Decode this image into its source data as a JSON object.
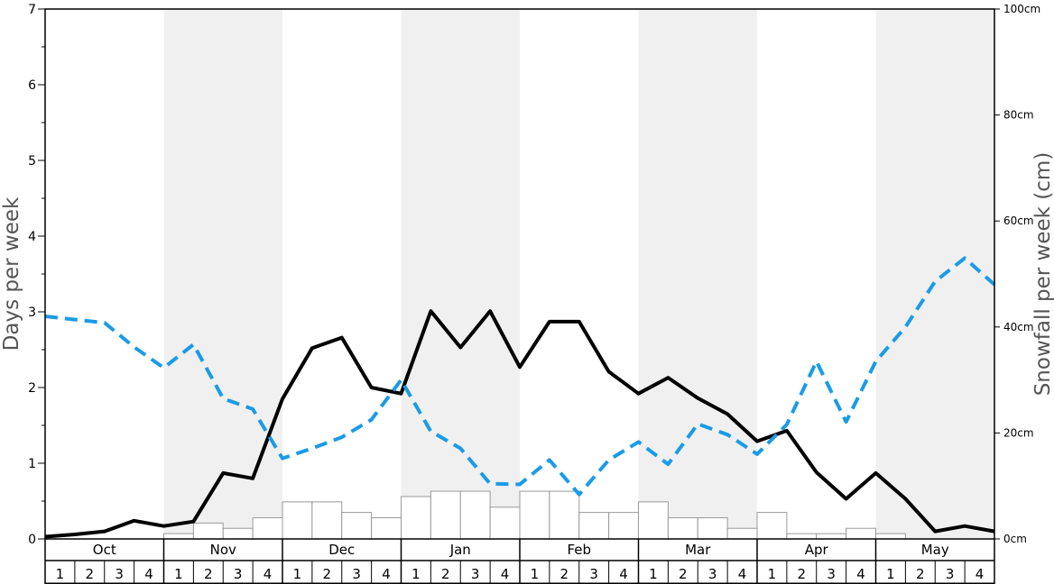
{
  "chart_data": {
    "type": "bar+line",
    "title": "",
    "ylabel_left": "Days per week",
    "ylabel_right": "Snowfall per week (cm)",
    "ylim_left": [
      0,
      7
    ],
    "ylim_right": [
      0,
      100
    ],
    "left_ticks": [
      "0",
      "1",
      "2",
      "3",
      "4",
      "5",
      "6",
      "7"
    ],
    "right_ticks": [
      "0cm",
      "20cm",
      "40cm",
      "60cm",
      "80cm",
      "100cm"
    ],
    "right_tick_values": [
      0,
      20,
      40,
      60,
      80,
      100
    ],
    "months": [
      "Oct",
      "Nov",
      "Dec",
      "Jan",
      "Feb",
      "Mar",
      "Apr",
      "May"
    ],
    "weeks": [
      "1",
      "2",
      "3",
      "4"
    ],
    "band_colors": [
      "#ffffff",
      "#f0f0f0"
    ],
    "series": [
      {
        "kind": "bar",
        "axis": "right",
        "color": "#ffffff",
        "values": [
          0,
          0,
          0,
          0,
          1,
          3,
          2,
          4,
          7,
          7,
          5,
          4,
          8,
          9,
          9,
          6,
          9,
          9,
          5,
          5,
          7,
          4,
          4,
          2,
          5,
          1,
          1,
          2,
          1,
          0,
          0,
          0
        ]
      },
      {
        "kind": "line",
        "axis": "left",
        "color": "#000000",
        "style": "solid",
        "values": [
          0.03,
          0.06,
          0.1,
          0.24,
          0.17,
          0.23,
          0.87,
          0.8,
          1.85,
          2.52,
          2.66,
          2.0,
          1.92,
          3.01,
          2.53,
          3.01,
          2.27,
          2.87,
          2.87,
          2.21,
          1.92,
          2.13,
          1.86,
          1.65,
          1.29,
          1.43,
          0.88,
          0.53,
          0.87,
          0.53,
          0.1,
          0.17,
          0.1
        ]
      },
      {
        "kind": "line",
        "axis": "right",
        "color": "#1a9be6",
        "style": "dashed",
        "values": [
          42.0,
          41.4,
          40.8,
          36.2,
          32.3,
          36.7,
          26.5,
          24.5,
          15.2,
          17.1,
          19.2,
          22.5,
          30.0,
          20.3,
          17.1,
          10.4,
          10.3,
          14.9,
          8.4,
          14.9,
          18.3,
          14.1,
          21.7,
          19.7,
          16.0,
          21.6,
          33.5,
          22.1,
          33.5,
          40.0,
          48.6,
          53.0,
          48.0
        ]
      }
    ]
  }
}
